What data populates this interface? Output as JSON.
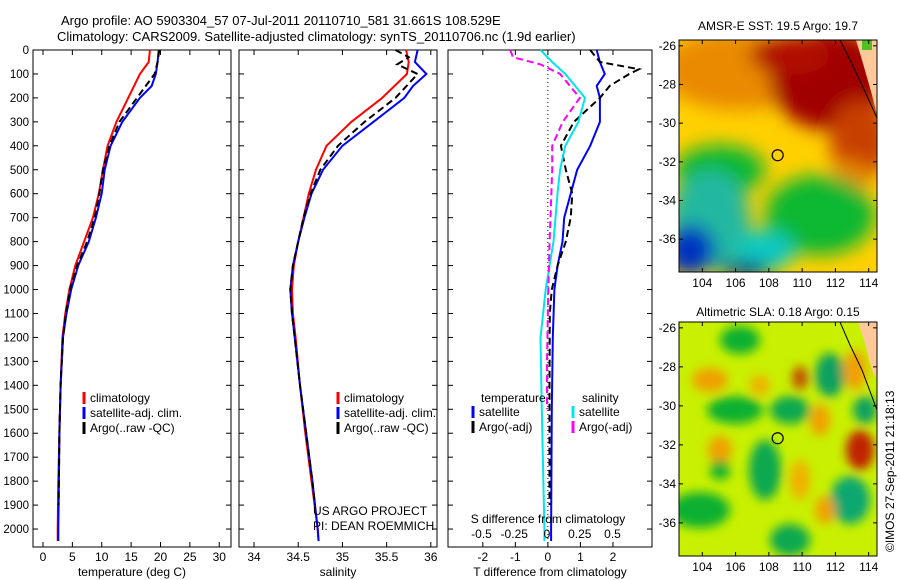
{
  "title_line1": "Argo profile: AO 5903304_57 07-Jul-2011 20110710_581 31.661S 108.529E",
  "title_line2": "Climatology: CARS2009. Satellite-adjusted climatology: synTS_20110706.nc (1.9d earlier)",
  "credit": "©IMOS 27-Sep-2011 21:18:13",
  "project_line1": "US ARGO PROJECT",
  "project_line2": "PI: DEAN ROEMMICH",
  "colors": {
    "climatology": "#ff0000",
    "satellite": "#0000ff",
    "argo": "#000000",
    "sal_satellite": "#00e5ee",
    "sal_argo": "#ff00ff"
  },
  "chart_data": [
    {
      "type": "line",
      "id": "temperature",
      "xlabel": "temperature (deg C)",
      "ylabel": "depth",
      "xlim": [
        -1.7,
        32
      ],
      "ylim": [
        2075,
        0
      ],
      "xticks": [
        0,
        5,
        10,
        15,
        20,
        25,
        30
      ],
      "yticks": [
        0,
        100,
        200,
        300,
        400,
        500,
        600,
        700,
        800,
        900,
        1000,
        1100,
        1200,
        1300,
        1400,
        1500,
        1600,
        1700,
        1800,
        1900,
        2000
      ],
      "legend": [
        "climatology",
        "satellite-adj. clim.",
        "Argo(..raw -QC)"
      ],
      "series": [
        {
          "name": "climatology",
          "color": "#ff0000",
          "dash": false,
          "points": [
            [
              18.2,
              0
            ],
            [
              18,
              50
            ],
            [
              16.5,
              100
            ],
            [
              14.5,
              200
            ],
            [
              12.5,
              300
            ],
            [
              11,
              400
            ],
            [
              10.2,
              500
            ],
            [
              9.5,
              600
            ],
            [
              8.5,
              700
            ],
            [
              7,
              800
            ],
            [
              5.5,
              900
            ],
            [
              4.5,
              1000
            ],
            [
              3.8,
              1100
            ],
            [
              3.3,
              1200
            ],
            [
              3,
              1400
            ],
            [
              2.8,
              1600
            ],
            [
              2.6,
              1800
            ],
            [
              2.5,
              2000
            ],
            [
              2.5,
              2050
            ]
          ]
        },
        {
          "name": "satellite-adj. clim.",
          "color": "#0000ff",
          "dash": false,
          "points": [
            [
              19.7,
              0
            ],
            [
              19.5,
              50
            ],
            [
              19.2,
              100
            ],
            [
              18.5,
              150
            ],
            [
              16.5,
              200
            ],
            [
              13.5,
              300
            ],
            [
              11.5,
              400
            ],
            [
              10.5,
              500
            ],
            [
              10,
              600
            ],
            [
              9,
              700
            ],
            [
              7.8,
              800
            ],
            [
              6,
              900
            ],
            [
              4.8,
              1000
            ],
            [
              4,
              1100
            ],
            [
              3.4,
              1200
            ],
            [
              3,
              1400
            ],
            [
              2.8,
              1600
            ],
            [
              2.7,
              1800
            ],
            [
              2.6,
              2000
            ],
            [
              2.6,
              2050
            ]
          ]
        },
        {
          "name": "Argo(..raw -QC)",
          "color": "#000000",
          "dash": true,
          "points": [
            [
              19.8,
              0
            ],
            [
              19.5,
              50
            ],
            [
              19,
              100
            ],
            [
              17.5,
              150
            ],
            [
              16,
              200
            ],
            [
              13,
              300
            ],
            [
              11.3,
              400
            ],
            [
              10.2,
              500
            ],
            [
              9.6,
              600
            ],
            [
              8.8,
              700
            ],
            [
              7.5,
              800
            ],
            [
              5.8,
              900
            ],
            [
              4.6,
              1000
            ],
            [
              3.9,
              1100
            ],
            [
              3.4,
              1200
            ],
            [
              3,
              1400
            ],
            [
              2.8,
              1600
            ],
            [
              2.7,
              1800
            ],
            [
              2.65,
              1900
            ]
          ]
        }
      ]
    },
    {
      "type": "line",
      "id": "salinity",
      "xlabel": "salinity",
      "xlim": [
        33.83,
        36.07
      ],
      "ylim": [
        2075,
        0
      ],
      "xticks": [
        34,
        34.5,
        35,
        35.5,
        36
      ],
      "xticklabels": [
        "34",
        "34.5",
        "35",
        "35.5",
        "36"
      ],
      "legend": [
        "climatology",
        "satellite-adj. clim.",
        "Argo(..raw -QC)"
      ],
      "series": [
        {
          "name": "climatology",
          "color": "#ff0000",
          "dash": false,
          "points": [
            [
              35.72,
              0
            ],
            [
              35.75,
              50
            ],
            [
              35.73,
              100
            ],
            [
              35.45,
              200
            ],
            [
              35.1,
              300
            ],
            [
              34.82,
              400
            ],
            [
              34.7,
              500
            ],
            [
              34.62,
              600
            ],
            [
              34.56,
              700
            ],
            [
              34.5,
              800
            ],
            [
              34.45,
              900
            ],
            [
              34.43,
              1000
            ],
            [
              34.44,
              1100
            ],
            [
              34.47,
              1200
            ],
            [
              34.52,
              1400
            ],
            [
              34.58,
              1600
            ],
            [
              34.65,
              1800
            ],
            [
              34.72,
              2000
            ],
            [
              34.73,
              2050
            ]
          ]
        },
        {
          "name": "satellite-adj. clim.",
          "color": "#0000ff",
          "dash": false,
          "points": [
            [
              35.85,
              0
            ],
            [
              35.82,
              50
            ],
            [
              35.95,
              100
            ],
            [
              35.8,
              150
            ],
            [
              35.7,
              200
            ],
            [
              35.35,
              300
            ],
            [
              35.0,
              400
            ],
            [
              34.78,
              500
            ],
            [
              34.65,
              600
            ],
            [
              34.57,
              700
            ],
            [
              34.5,
              800
            ],
            [
              34.44,
              900
            ],
            [
              34.41,
              1000
            ],
            [
              34.43,
              1100
            ],
            [
              34.46,
              1200
            ],
            [
              34.52,
              1400
            ],
            [
              34.59,
              1600
            ],
            [
              34.66,
              1800
            ],
            [
              34.72,
              2000
            ],
            [
              34.73,
              2050
            ]
          ]
        },
        {
          "name": "Argo(..raw -QC)",
          "color": "#000000",
          "dash": true,
          "points": [
            [
              35.6,
              0
            ],
            [
              35.75,
              30
            ],
            [
              35.62,
              60
            ],
            [
              35.85,
              100
            ],
            [
              35.6,
              200
            ],
            [
              35.25,
              300
            ],
            [
              34.95,
              400
            ],
            [
              34.75,
              500
            ],
            [
              34.64,
              600
            ],
            [
              34.56,
              700
            ],
            [
              34.5,
              800
            ],
            [
              34.44,
              900
            ],
            [
              34.41,
              1000
            ],
            [
              34.43,
              1100
            ],
            [
              34.46,
              1200
            ],
            [
              34.52,
              1400
            ],
            [
              34.59,
              1600
            ],
            [
              34.66,
              1800
            ],
            [
              34.69,
              1900
            ]
          ]
        }
      ]
    },
    {
      "type": "line",
      "id": "difference",
      "xlabel": "T difference from climatology",
      "xlabel2": "S difference from climatology",
      "xlim": [
        -3.07,
        3.2
      ],
      "xlim_s": [
        -0.5,
        0.5
      ],
      "ylim": [
        2075,
        0
      ],
      "xticks": [
        -2,
        -1,
        0,
        1,
        2
      ],
      "xticklabels": [
        "-2",
        "-1",
        "0",
        "1",
        "2"
      ],
      "sticks": [
        -0.5,
        -0.25,
        0,
        0.25,
        0.5
      ],
      "sticklabels": [
        "-0.5",
        "-0.25",
        "0",
        "0.25",
        "0.5"
      ],
      "legend_temperature_title": "temperature",
      "legend_salinity_title": "salinity",
      "legend_temperature": [
        "satellite",
        "Argo(-adj)"
      ],
      "legend_salinity": [
        "satellite",
        "Argo(-adj)"
      ],
      "series": [
        {
          "name": "T satellite",
          "axis": "T",
          "color": "#0000ff",
          "dash": false,
          "points": [
            [
              1.5,
              0
            ],
            [
              1.6,
              50
            ],
            [
              1.75,
              100
            ],
            [
              1.5,
              150
            ],
            [
              1.6,
              200
            ],
            [
              1.6,
              300
            ],
            [
              1.3,
              400
            ],
            [
              0.9,
              500
            ],
            [
              0.7,
              600
            ],
            [
              0.5,
              700
            ],
            [
              0.45,
              800
            ],
            [
              0.3,
              900
            ],
            [
              0.2,
              1000
            ],
            [
              0.15,
              1200
            ],
            [
              0.12,
              1500
            ],
            [
              0.1,
              2000
            ],
            [
              0.1,
              2050
            ]
          ]
        },
        {
          "name": "T Argo(-adj)",
          "axis": "T",
          "color": "#000000",
          "dash": true,
          "points": [
            [
              1.3,
              0
            ],
            [
              1.6,
              50
            ],
            [
              2.8,
              80
            ],
            [
              2.5,
              100
            ],
            [
              1.9,
              150
            ],
            [
              1.6,
              200
            ],
            [
              0.8,
              300
            ],
            [
              0.4,
              400
            ],
            [
              0.55,
              500
            ],
            [
              0.75,
              600
            ],
            [
              0.7,
              700
            ],
            [
              0.55,
              800
            ],
            [
              0.3,
              900
            ],
            [
              0.12,
              1000
            ],
            [
              0.06,
              1100
            ],
            [
              0.05,
              1400
            ],
            [
              0.05,
              1900
            ]
          ]
        },
        {
          "name": "S satellite",
          "axis": "S",
          "color": "#00e5ee",
          "dash": false,
          "points": [
            [
              -0.05,
              0
            ],
            [
              0.04,
              50
            ],
            [
              0.14,
              100
            ],
            [
              0.29,
              200
            ],
            [
              0.24,
              300
            ],
            [
              0.14,
              400
            ],
            [
              0.1,
              500
            ],
            [
              0.08,
              600
            ],
            [
              0.05,
              800
            ],
            [
              -0.01,
              1000
            ],
            [
              -0.05,
              1200
            ],
            [
              -0.04,
              1500
            ],
            [
              -0.02,
              2000
            ],
            [
              -0.02,
              2050
            ]
          ]
        },
        {
          "name": "S Argo(-adj)",
          "axis": "S",
          "color": "#ff00ff",
          "dash": true,
          "points": [
            [
              -0.28,
              0
            ],
            [
              -0.26,
              30
            ],
            [
              -0.05,
              60
            ],
            [
              0.1,
              100
            ],
            [
              0.25,
              200
            ],
            [
              0.12,
              300
            ],
            [
              0.04,
              400
            ],
            [
              0.04,
              500
            ],
            [
              0.02,
              800
            ],
            [
              0.01,
              1000
            ],
            [
              0.0,
              1300
            ],
            [
              0.0,
              1500
            ]
          ]
        }
      ]
    },
    {
      "type": "heatmap",
      "id": "sst-map",
      "title": "AMSR-E SST: 19.5 Argo: 19.7",
      "xlim": [
        102.6,
        114.5
      ],
      "ylim": [
        -25.7,
        -37.7
      ],
      "xticks": [
        104,
        106,
        108,
        110,
        112,
        114
      ],
      "yticks": [
        -26,
        -28,
        -30,
        -32,
        -34,
        -36
      ],
      "float_position": [
        108.529,
        -31.661
      ]
    },
    {
      "type": "heatmap",
      "id": "sla-map",
      "title": "Altimetric SLA: 0.18 Argo: 0.15",
      "xlim": [
        102.6,
        114.5
      ],
      "ylim": [
        -25.7,
        -37.7
      ],
      "xticks": [
        104,
        106,
        108,
        110,
        112,
        114
      ],
      "yticks": [
        -26,
        -28,
        -30,
        -32,
        -34,
        -36
      ],
      "float_position": [
        108.529,
        -31.661
      ]
    }
  ]
}
